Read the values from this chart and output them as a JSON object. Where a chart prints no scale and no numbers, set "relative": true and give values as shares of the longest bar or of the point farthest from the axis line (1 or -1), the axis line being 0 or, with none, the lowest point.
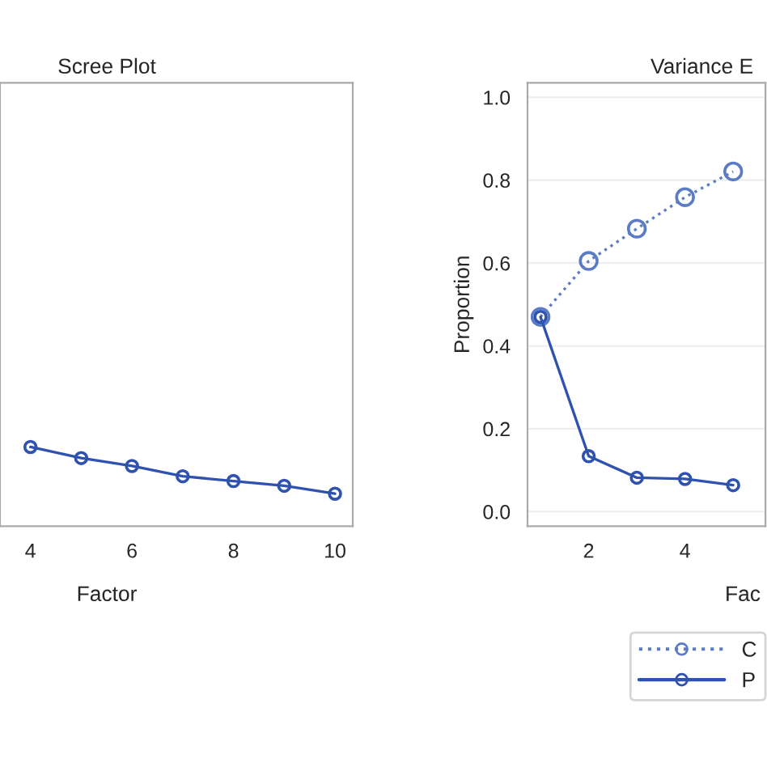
{
  "chart_data": [
    {
      "type": "line",
      "title": "Scree Plot",
      "xlabel": "Factor",
      "relative": true,
      "marker": "circle",
      "tick_labels": "x",
      "xlim": [
        3.4,
        10.35
      ],
      "xticks": [
        4,
        6,
        8,
        10
      ],
      "series": [
        {
          "color": "#2f52b0",
          "line_style": "solid",
          "x": [
            4,
            5,
            6,
            7,
            8,
            9,
            10
          ],
          "values": [
            1,
            0.86,
            0.76,
            0.63,
            0.57,
            0.51,
            0.41
          ]
        }
      ]
    },
    {
      "type": "line",
      "title": "Variance E",
      "xlabel": "Fac",
      "ylabel": "Proportion",
      "grid": "y",
      "marker": "circle",
      "legend": "bottom right",
      "xlim": [
        0.73,
        5.67
      ],
      "xticks": [
        2,
        4
      ],
      "ylim": [
        -0.035,
        1.035
      ],
      "yticks": [
        {
          "value": 0,
          "label": "0.0"
        },
        0.2,
        0.4,
        0.6,
        0.8,
        {
          "value": 1,
          "label": "1.0"
        }
      ],
      "series": [
        {
          "name": "C",
          "color": "#5b7cc4",
          "line_style": "dotted",
          "x": [
            1,
            2,
            3,
            4,
            5
          ],
          "values": [
            0.47,
            0.605,
            0.683,
            0.759,
            0.821
          ]
        },
        {
          "name": "P",
          "color": "#2f52b0",
          "line_style": "solid",
          "x": [
            1,
            2,
            3,
            4,
            5
          ],
          "values": [
            0.47,
            0.134,
            0.082,
            0.079,
            0.064
          ]
        }
      ]
    }
  ]
}
